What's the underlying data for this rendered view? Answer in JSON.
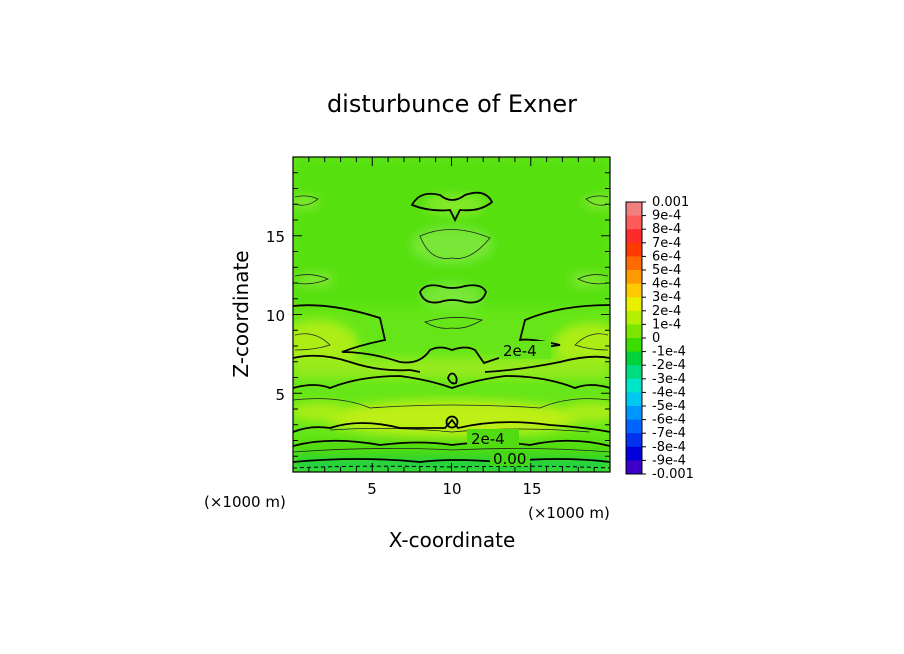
{
  "chart_data": {
    "type": "heatmap",
    "title": "disturbunce of Exner",
    "xlabel": "X-coordinate",
    "ylabel": "Z-coordinate",
    "x_unit_label": "(×1000 m)",
    "y_unit_label": "(×1000 m)",
    "xlim": [
      0,
      20
    ],
    "ylim": [
      0,
      20
    ],
    "x_ticks": [
      "5",
      "10",
      "15"
    ],
    "y_ticks": [
      "5",
      "10",
      "15"
    ],
    "legend_position": "right",
    "colorbar": {
      "labels": [
        "0.001",
        "9e-4",
        "8e-4",
        "7e-4",
        "6e-4",
        "5e-4",
        "4e-4",
        "3e-4",
        "2e-4",
        "1e-4",
        "0",
        "-1e-4",
        "-2e-4",
        "-3e-4",
        "-4e-4",
        "-5e-4",
        "-6e-4",
        "-7e-4",
        "-8e-4",
        "-9e-4",
        "-0.001"
      ],
      "colors": [
        "#f08080",
        "#ff5a5a",
        "#ff2a2a",
        "#ff3a00",
        "#ff6a00",
        "#ff9a00",
        "#ffc800",
        "#e8f000",
        "#b4f000",
        "#7ce600",
        "#3cdc00",
        "#00d23c",
        "#00dc82",
        "#00e6c8",
        "#00c8f0",
        "#0096ff",
        "#0064ff",
        "#0032f0",
        "#0000dc",
        "#3c00c8"
      ]
    },
    "contour_labels": [
      "2e-4",
      "2e-4",
      "0.00"
    ]
  }
}
